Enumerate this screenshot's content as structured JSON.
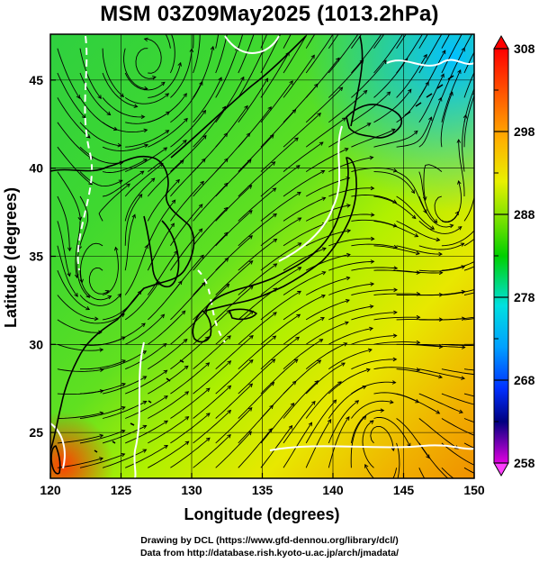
{
  "title": "MSM 03Z09May2025 (1013.2hPa)",
  "axes": {
    "xlabel": "Longitude (degrees)",
    "ylabel": "Latitude  (degrees)",
    "xticks": [
      "120",
      "125",
      "130",
      "135",
      "140",
      "145",
      "150"
    ],
    "yticks": [
      "25",
      "30",
      "35",
      "40",
      "45"
    ],
    "x_range": [
      120,
      150
    ],
    "y_range": [
      22.4,
      47.6
    ]
  },
  "colorbar": {
    "labels": [
      "308",
      "298",
      "288",
      "278",
      "268",
      "258"
    ],
    "range": [
      258,
      308
    ],
    "colors": [
      "#e000e0",
      "#000080",
      "#0050ff",
      "#00e0ff",
      "#00c000",
      "#c0ff00",
      "#ffa000",
      "#ff0000"
    ]
  },
  "credit": {
    "line1": "Drawing by DCL (https://www.gfd-dennou.org/library/dcl/)",
    "line2": "Data from http://database.rish.kyoto-u.ac.jp/arch/jmadata/"
  },
  "colors": {
    "land_outline": "#000000",
    "contour": "#ffffff",
    "streamline": "#000000"
  }
}
